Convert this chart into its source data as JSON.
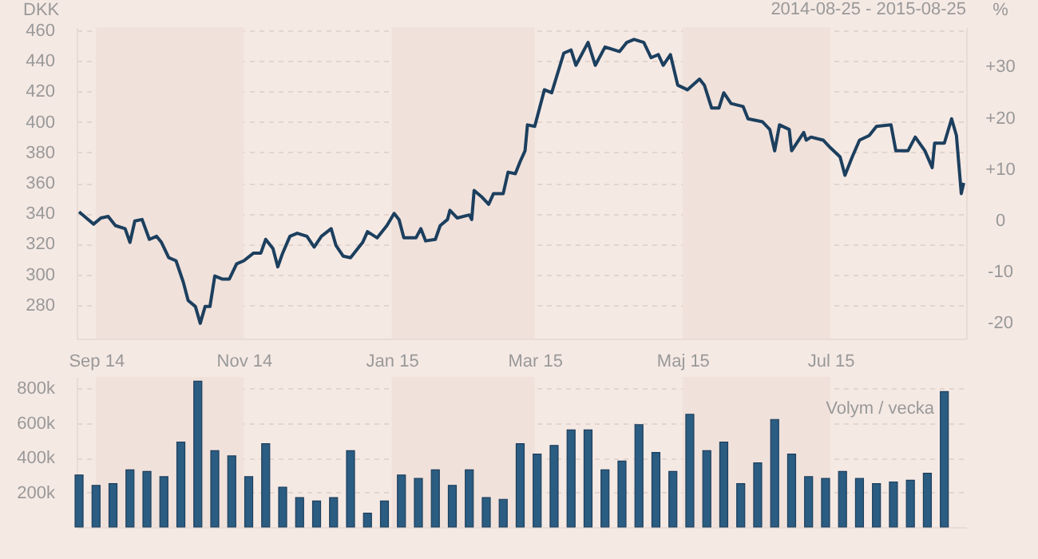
{
  "chart_data": [
    {
      "type": "line",
      "title": "2014-08-25 - 2015-08-25",
      "ylabel": "DKK",
      "y2label": "%",
      "x": [
        "2014-08-25",
        "2014-08-28",
        "2014-08-31",
        "2014-09-03",
        "2014-09-06",
        "2014-09-09",
        "2014-09-13",
        "2014-09-15",
        "2014-09-17",
        "2014-09-20",
        "2014-09-23",
        "2014-09-26",
        "2014-09-28",
        "2014-10-01",
        "2014-10-04",
        "2014-10-07",
        "2014-10-09",
        "2014-10-12",
        "2014-10-14",
        "2014-10-16",
        "2014-10-18",
        "2014-10-20",
        "2014-10-23",
        "2014-10-26",
        "2014-10-29",
        "2014-11-01",
        "2014-11-05",
        "2014-11-08",
        "2014-11-10",
        "2014-11-13",
        "2014-11-15",
        "2014-11-17",
        "2014-11-20",
        "2014-11-23",
        "2014-11-27",
        "2014-11-30",
        "2014-12-03",
        "2014-12-07",
        "2014-12-09",
        "2014-12-12",
        "2014-12-15",
        "2014-12-20",
        "2014-12-22",
        "2014-12-26",
        "2014-12-30",
        "2015-01-02",
        "2015-01-04",
        "2015-01-06",
        "2015-01-11",
        "2015-01-13",
        "2015-01-15",
        "2015-01-19",
        "2015-01-21",
        "2015-01-24",
        "2015-01-25",
        "2015-01-28",
        "2015-02-02",
        "2015-02-03",
        "2015-02-04",
        "2015-02-07",
        "2015-02-10",
        "2015-02-12",
        "2015-02-16",
        "2015-02-18",
        "2015-02-21",
        "2015-02-23",
        "2015-02-25",
        "2015-02-26",
        "2015-03-01",
        "2015-03-05",
        "2015-03-08",
        "2015-03-13",
        "2015-03-16",
        "2015-03-18",
        "2015-03-23",
        "2015-03-26",
        "2015-03-30",
        "2015-04-05",
        "2015-04-08",
        "2015-04-11",
        "2015-04-15",
        "2015-04-18",
        "2015-04-21",
        "2015-04-23",
        "2015-04-26",
        "2015-04-29",
        "2015-05-03",
        "2015-05-08",
        "2015-05-10",
        "2015-05-13",
        "2015-05-16",
        "2015-05-18",
        "2015-05-21",
        "2015-05-26",
        "2015-05-28",
        "2015-06-03",
        "2015-06-06",
        "2015-06-08",
        "2015-06-10",
        "2015-06-14",
        "2015-06-15",
        "2015-06-20",
        "2015-06-21",
        "2015-06-23",
        "2015-06-28",
        "2015-07-01",
        "2015-07-05",
        "2015-07-07",
        "2015-07-10",
        "2015-07-13",
        "2015-07-17",
        "2015-07-20",
        "2015-07-26",
        "2015-07-28",
        "2015-08-02",
        "2015-08-05",
        "2015-08-09",
        "2015-08-12",
        "2015-08-13",
        "2015-08-17",
        "2015-08-20",
        "2015-08-22",
        "2015-08-24",
        "2015-08-25"
      ],
      "series": [
        {
          "color": "#1c3f5e",
          "values": [
            341,
            337,
            333,
            337,
            338,
            332,
            330,
            321,
            335,
            336,
            323,
            325,
            321,
            311,
            309,
            295,
            283,
            279,
            268,
            279,
            279,
            299,
            297,
            297,
            307,
            309,
            314,
            314,
            323,
            317,
            305,
            314,
            325,
            327,
            325,
            318,
            325,
            330,
            319,
            312,
            311,
            321,
            328,
            324,
            332,
            340,
            336,
            324,
            324,
            330,
            322,
            323,
            332,
            336,
            342,
            337,
            339,
            336,
            355,
            351,
            346,
            353,
            353,
            367,
            366,
            374,
            381,
            398,
            397,
            421,
            419,
            445,
            447,
            437,
            452,
            437,
            449,
            446,
            452,
            454,
            452,
            442,
            444,
            437,
            444,
            424,
            421,
            428,
            424,
            409,
            409,
            419,
            412,
            410,
            402,
            400,
            395,
            381,
            398,
            395,
            381,
            393,
            388,
            390,
            388,
            383,
            377,
            365,
            377,
            388,
            391,
            397,
            398,
            381,
            381,
            390,
            381,
            370,
            386,
            386,
            402,
            391,
            353,
            360
          ]
        }
      ],
      "xlim": [
        "2014-08-24",
        "2015-08-26"
      ],
      "xticks": [
        {
          "value": "2014-09-01",
          "label": "Sep 14"
        },
        {
          "value": "2014-11-01",
          "label": "Nov 14"
        },
        {
          "value": "2015-01-01",
          "label": "Jan 15"
        },
        {
          "value": "2015-03-01",
          "label": "Mar 15"
        },
        {
          "value": "2015-05-01",
          "label": "Maj 15"
        },
        {
          "value": "2015-07-01",
          "label": "Jul 15"
        }
      ],
      "ylim": [
        258,
        462
      ],
      "yticks": [
        280,
        300,
        320,
        340,
        360,
        380,
        400,
        420,
        440,
        460
      ],
      "y2lim": [
        -23.1,
        37.7
      ],
      "y2ticks": [
        {
          "value": -20,
          "label": "-20"
        },
        {
          "value": -10,
          "label": "-10"
        },
        0,
        {
          "value": 10,
          "label": "+10"
        },
        {
          "value": 20,
          "label": "+20"
        },
        {
          "value": 30,
          "label": "+30"
        }
      ],
      "grid": "y",
      "bands": [
        {
          "axis": "x",
          "from": "2014-09-01",
          "to": "2014-11-01",
          "color": "#f0e1db"
        },
        {
          "axis": "x",
          "from": "2015-01-01",
          "to": "2015-03-01",
          "color": "#f0e1db"
        },
        {
          "axis": "x",
          "from": "2015-05-01",
          "to": "2015-07-01",
          "color": "#f0e1db"
        }
      ]
    },
    {
      "type": "bar",
      "annotations": [
        "Volym / vecka"
      ],
      "x": [
        "2014-08-25",
        "2014-09-01",
        "2014-09-08",
        "2014-09-15",
        "2014-09-22",
        "2014-09-29",
        "2014-10-06",
        "2014-10-13",
        "2014-10-20",
        "2014-10-27",
        "2014-11-03",
        "2014-11-10",
        "2014-11-17",
        "2014-11-24",
        "2014-12-01",
        "2014-12-08",
        "2014-12-15",
        "2014-12-22",
        "2014-12-29",
        "2015-01-05",
        "2015-01-12",
        "2015-01-19",
        "2015-01-26",
        "2015-02-02",
        "2015-02-09",
        "2015-02-16",
        "2015-02-23",
        "2015-03-02",
        "2015-03-09",
        "2015-03-16",
        "2015-03-23",
        "2015-03-30",
        "2015-04-06",
        "2015-04-13",
        "2015-04-20",
        "2015-04-27",
        "2015-05-04",
        "2015-05-11",
        "2015-05-18",
        "2015-05-25",
        "2015-06-01",
        "2015-06-08",
        "2015-06-15",
        "2015-06-22",
        "2015-06-29",
        "2015-07-06",
        "2015-07-13",
        "2015-07-20",
        "2015-07-27",
        "2015-08-03",
        "2015-08-10",
        "2015-08-17"
      ],
      "series": [
        {
          "color": "#2b5c82",
          "values": [
            300000,
            240000,
            250000,
            330000,
            320000,
            290000,
            490000,
            840000,
            440000,
            410000,
            290000,
            480000,
            230000,
            170000,
            150000,
            170000,
            440000,
            80000,
            150000,
            300000,
            280000,
            330000,
            240000,
            330000,
            170000,
            160000,
            480000,
            420000,
            470000,
            560000,
            560000,
            330000,
            380000,
            590000,
            430000,
            320000,
            650000,
            440000,
            490000,
            250000,
            370000,
            620000,
            420000,
            290000,
            280000,
            320000,
            280000,
            250000,
            260000,
            270000,
            310000,
            780000
          ]
        }
      ],
      "xlim": [
        "2014-08-24",
        "2015-08-26"
      ],
      "ylim": [
        0,
        865000
      ],
      "yticks": [
        {
          "value": 200000,
          "label": "200k"
        },
        {
          "value": 400000,
          "label": "400k"
        },
        {
          "value": 600000,
          "label": "600k"
        },
        {
          "value": 800000,
          "label": "800k"
        }
      ],
      "tick_labels": "y",
      "grid": "y",
      "bands": [
        {
          "axis": "x",
          "from": "2014-09-01",
          "to": "2014-11-01",
          "color": "#f0e1db"
        },
        {
          "axis": "x",
          "from": "2015-01-01",
          "to": "2015-03-01",
          "color": "#f0e1db"
        },
        {
          "axis": "x",
          "from": "2015-05-01",
          "to": "2015-07-01",
          "color": "#f0e1db"
        }
      ]
    }
  ]
}
